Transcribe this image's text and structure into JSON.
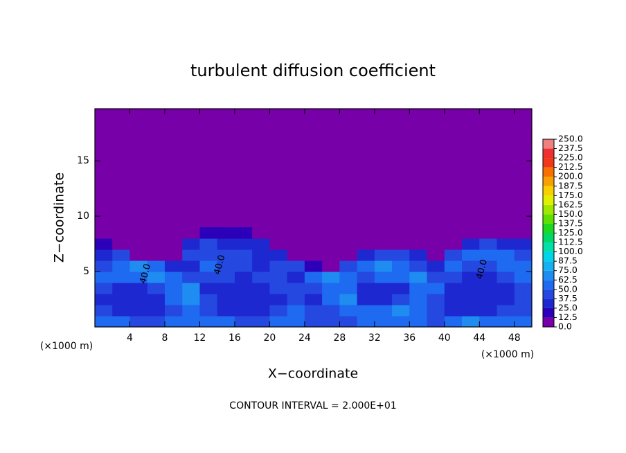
{
  "chart_data": {
    "type": "heatmap",
    "title": "turbulent diffusion coefficient",
    "x_label": "X−coordinate",
    "y_label": "Z−coordinate",
    "x_unit_label": "(×1000 m)",
    "y_unit_label": "(×1000 m)",
    "footnote": "CONTOUR INTERVAL = 2.000E+01",
    "xlim": [
      0,
      50
    ],
    "ylim": [
      0,
      19.7
    ],
    "xticks": [
      4,
      8,
      12,
      16,
      20,
      24,
      28,
      32,
      36,
      40,
      44,
      48
    ],
    "yticks": [
      5,
      10,
      15
    ],
    "field": {
      "x": [
        1,
        3,
        5,
        7,
        9,
        11,
        13,
        15,
        17,
        19,
        21,
        23,
        25,
        27,
        29,
        31,
        33,
        35,
        37,
        39,
        41,
        43,
        45,
        47,
        49
      ],
      "z": [
        0.5,
        1.5,
        2.5,
        3.5,
        4.5,
        5.5,
        6.5,
        7.5,
        8.5
      ],
      "values": [
        [
          55,
          50,
          45,
          45,
          50,
          60,
          55,
          50,
          45,
          45,
          50,
          55,
          45,
          40,
          45,
          50,
          55,
          60,
          50,
          45,
          60,
          65,
          55,
          50,
          55
        ],
        [
          40,
          35,
          30,
          35,
          45,
          55,
          45,
          35,
          30,
          30,
          40,
          50,
          40,
          45,
          60,
          60,
          50,
          65,
          55,
          40,
          35,
          30,
          35,
          40,
          45
        ],
        [
          35,
          30,
          25,
          30,
          50,
          65,
          40,
          30,
          25,
          30,
          35,
          45,
          35,
          50,
          65,
          35,
          30,
          45,
          60,
          45,
          30,
          25,
          25,
          35,
          40
        ],
        [
          45,
          35,
          30,
          40,
          60,
          70,
          35,
          30,
          30,
          35,
          40,
          40,
          40,
          60,
          55,
          25,
          25,
          30,
          60,
          50,
          35,
          25,
          25,
          30,
          45
        ],
        [
          55,
          50,
          60,
          65,
          55,
          40,
          45,
          40,
          35,
          40,
          45,
          35,
          50,
          65,
          50,
          40,
          50,
          55,
          65,
          40,
          40,
          30,
          30,
          40,
          55
        ],
        [
          45,
          60,
          70,
          55,
          35,
          35,
          50,
          45,
          40,
          35,
          40,
          40,
          20,
          0,
          45,
          60,
          70,
          60,
          45,
          35,
          50,
          40,
          45,
          50,
          50
        ],
        [
          35,
          40,
          0,
          0,
          0,
          40,
          45,
          40,
          40,
          35,
          35,
          0,
          0,
          0,
          0,
          25,
          40,
          45,
          30,
          0,
          45,
          55,
          60,
          50,
          40
        ],
        [
          20,
          0,
          0,
          0,
          0,
          25,
          40,
          35,
          35,
          30,
          0,
          0,
          0,
          0,
          0,
          0,
          0,
          0,
          0,
          0,
          0,
          30,
          40,
          35,
          30
        ],
        [
          0,
          0,
          0,
          0,
          0,
          0,
          15,
          20,
          15,
          0,
          0,
          0,
          0,
          0,
          0,
          0,
          0,
          0,
          0,
          0,
          0,
          0,
          10,
          5,
          0
        ]
      ]
    },
    "contour_labels": [
      {
        "x": 5.8,
        "z": 4.8,
        "label": "40.0"
      },
      {
        "x": 14.3,
        "z": 5.6,
        "label": "40.0"
      },
      {
        "x": 44.3,
        "z": 5.2,
        "label": "40.0"
      }
    ],
    "colorbar": {
      "levels": [
        {
          "value": 0,
          "label": "0.0"
        },
        {
          "value": 12.5,
          "label": "12.5"
        },
        {
          "value": 25,
          "label": "25.0"
        },
        {
          "value": 37.5,
          "label": "37.5"
        },
        {
          "value": 50,
          "label": "50.0"
        },
        {
          "value": 62.5,
          "label": "62.5"
        },
        {
          "value": 75,
          "label": "75.0"
        },
        {
          "value": 87.5,
          "label": "87.5"
        },
        {
          "value": 100,
          "label": "100.0"
        },
        {
          "value": 112.5,
          "label": "112.5"
        },
        {
          "value": 125,
          "label": "125.0"
        },
        {
          "value": 137.5,
          "label": "137.5"
        },
        {
          "value": 150,
          "label": "150.0"
        },
        {
          "value": 162.5,
          "label": "162.5"
        },
        {
          "value": 175,
          "label": "175.0"
        },
        {
          "value": 187.5,
          "label": "187.5"
        },
        {
          "value": 200,
          "label": "200.0"
        },
        {
          "value": 212.5,
          "label": "212.5"
        },
        {
          "value": 225,
          "label": "225.0"
        },
        {
          "value": 237.5,
          "label": "237.5"
        },
        {
          "value": 250,
          "label": "250.0"
        }
      ],
      "colors": [
        "#7800a8",
        "#2c00b8",
        "#1e28d0",
        "#2448e0",
        "#1e6af0",
        "#1e8cf0",
        "#14b0f0",
        "#00d4e8",
        "#00e0a8",
        "#00d868",
        "#20d820",
        "#60e000",
        "#a0e800",
        "#e0f000",
        "#f8d000",
        "#f8a000",
        "#f87000",
        "#f03818",
        "#f03030",
        "#f08080"
      ]
    }
  }
}
